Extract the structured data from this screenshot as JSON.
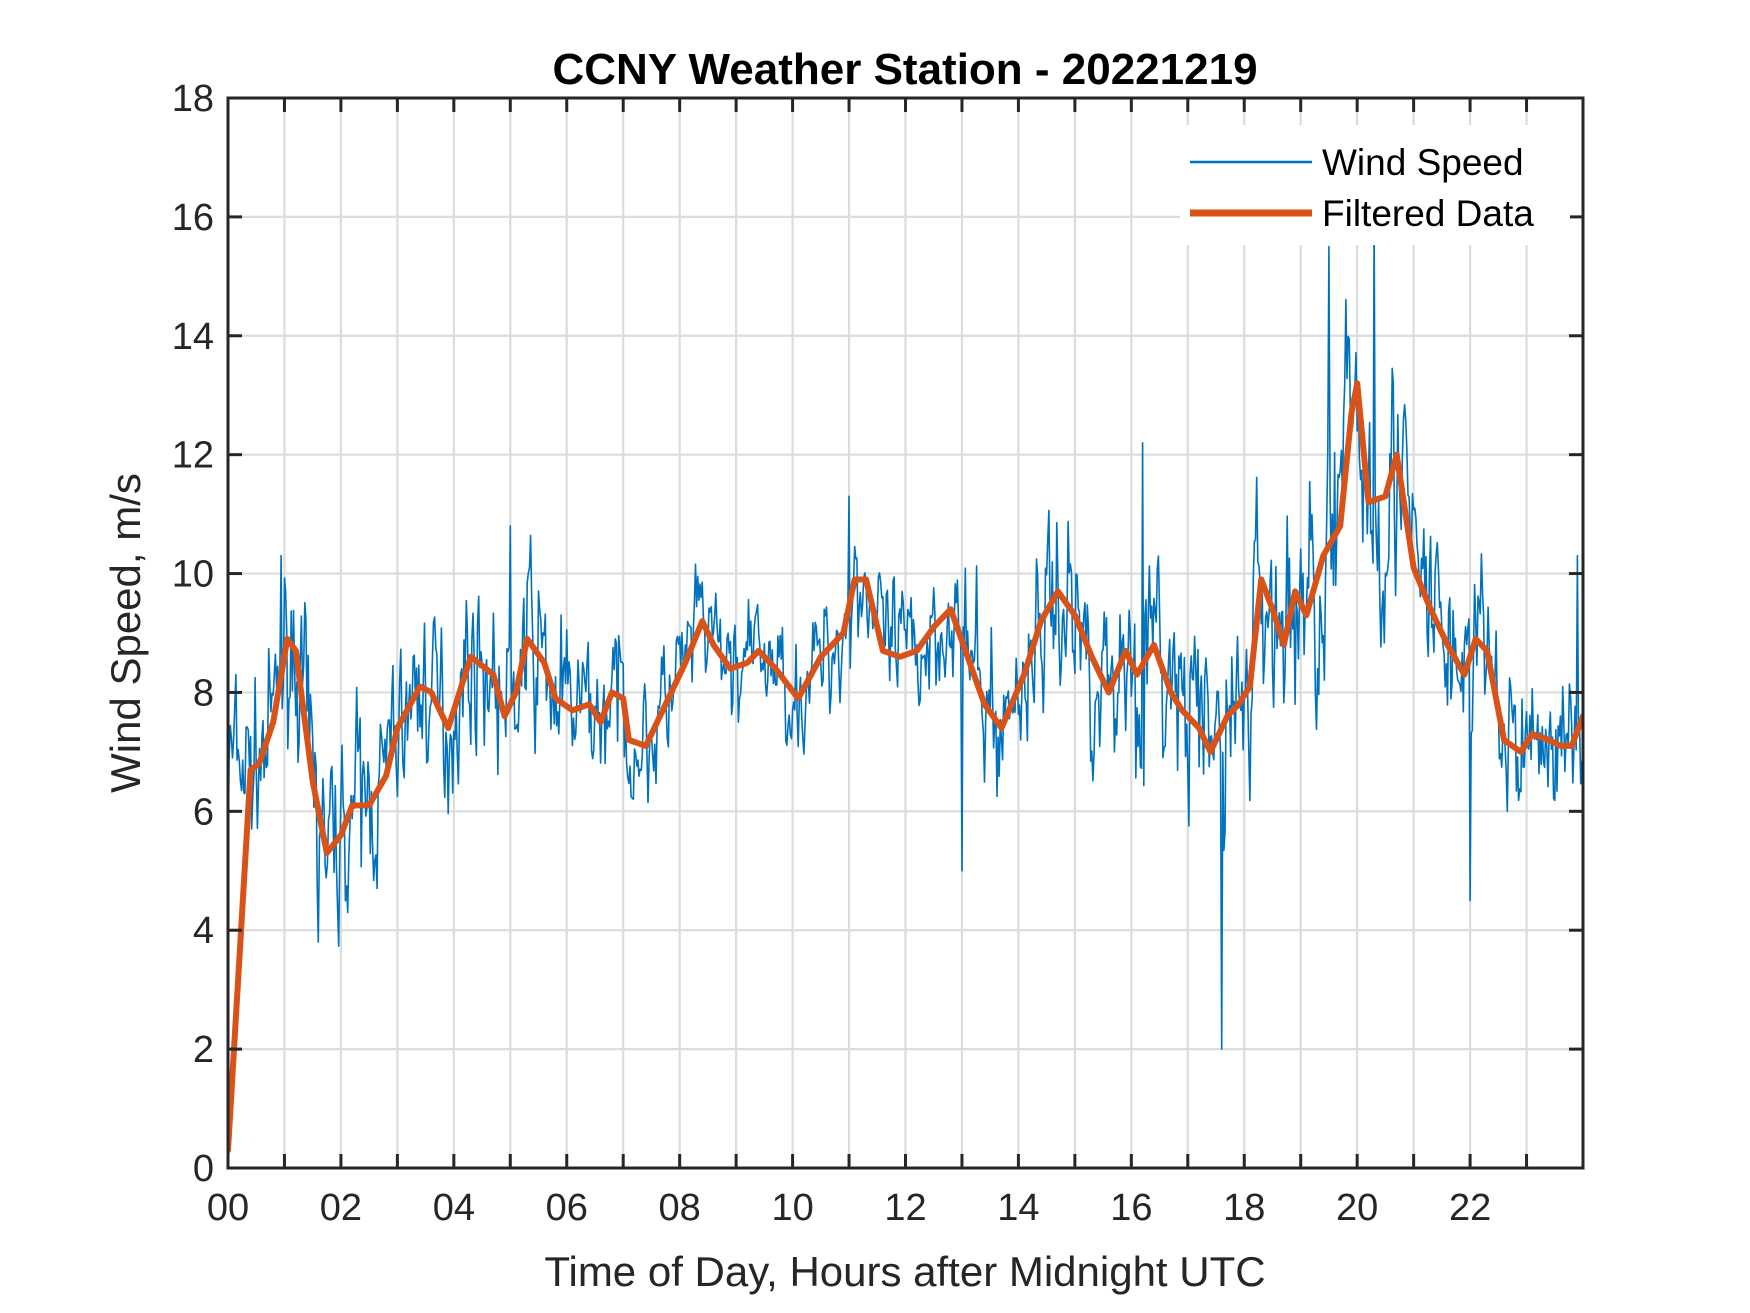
{
  "chart_data": {
    "type": "line",
    "title": "CCNY Weather Station - 20221219",
    "xlabel": "Time of Day, Hours after Midnight UTC",
    "ylabel": "Wind Speed, m/s",
    "xlim": [
      0,
      24
    ],
    "ylim": [
      0,
      18
    ],
    "grid": true,
    "legend_position": "top-right",
    "x_ticks": [
      0,
      2,
      4,
      6,
      8,
      10,
      12,
      14,
      16,
      18,
      20,
      22
    ],
    "x_tick_labels": [
      "00",
      "02",
      "04",
      "06",
      "08",
      "10",
      "12",
      "14",
      "16",
      "18",
      "20",
      "22"
    ],
    "x_minor_ticks_every_hours": 1,
    "y_ticks": [
      0,
      2,
      4,
      6,
      8,
      10,
      12,
      14,
      16,
      18
    ],
    "y_tick_labels": [
      "0",
      "2",
      "4",
      "6",
      "8",
      "10",
      "12",
      "14",
      "16",
      "18"
    ],
    "series": [
      {
        "name": "Wind Speed",
        "color": "#0072BD",
        "style": "thin",
        "x_step_hours": 0.02,
        "noise_seed": 7,
        "notable_points": [
          {
            "x": 0.0,
            "y": 5.2
          },
          {
            "x": 0.15,
            "y": 8.3
          },
          {
            "x": 0.95,
            "y": 10.3
          },
          {
            "x": 1.6,
            "y": 3.8
          },
          {
            "x": 5.0,
            "y": 10.8
          },
          {
            "x": 11.0,
            "y": 11.3
          },
          {
            "x": 13.0,
            "y": 5.0
          },
          {
            "x": 16.2,
            "y": 12.2
          },
          {
            "x": 17.6,
            "y": 2.0
          },
          {
            "x": 19.5,
            "y": 15.5
          },
          {
            "x": 20.3,
            "y": 16.0
          },
          {
            "x": 22.0,
            "y": 4.5
          },
          {
            "x": 23.9,
            "y": 10.3
          }
        ],
        "envelope_base": "Filtered Data"
      },
      {
        "name": "Filtered Data",
        "color": "#D95319",
        "style": "thick",
        "x": [
          0,
          0.4,
          0.55,
          0.8,
          1.05,
          1.2,
          1.5,
          1.75,
          2.0,
          2.2,
          2.5,
          2.8,
          3.0,
          3.4,
          3.6,
          3.9,
          4.1,
          4.3,
          4.7,
          4.9,
          5.1,
          5.3,
          5.6,
          5.8,
          6.1,
          6.4,
          6.6,
          6.8,
          7.0,
          7.1,
          7.4,
          7.8,
          8.1,
          8.4,
          8.6,
          8.9,
          9.2,
          9.4,
          9.7,
          10.1,
          10.5,
          10.9,
          11.1,
          11.3,
          11.6,
          11.9,
          12.2,
          12.5,
          12.8,
          13.1,
          13.4,
          13.7,
          14.1,
          14.4,
          14.7,
          15.0,
          15.3,
          15.6,
          15.9,
          16.1,
          16.4,
          16.7,
          16.9,
          17.2,
          17.4,
          17.7,
          17.9,
          18.1,
          18.3,
          18.5,
          18.7,
          18.9,
          19.1,
          19.4,
          19.7,
          19.9,
          20.0,
          20.2,
          20.5,
          20.7,
          21.0,
          21.3,
          21.6,
          21.9,
          22.1,
          22.3,
          22.6,
          22.9,
          23.1,
          23.4,
          23.6,
          23.8,
          24.0
        ],
        "y": [
          0.3,
          6.7,
          6.8,
          7.5,
          8.9,
          8.7,
          6.5,
          5.3,
          5.6,
          6.1,
          6.1,
          6.6,
          7.4,
          8.1,
          8.0,
          7.4,
          8.0,
          8.6,
          8.3,
          7.6,
          8.0,
          8.9,
          8.5,
          7.9,
          7.7,
          7.8,
          7.5,
          8.0,
          7.9,
          7.2,
          7.1,
          7.9,
          8.5,
          9.2,
          8.8,
          8.4,
          8.5,
          8.7,
          8.4,
          7.9,
          8.6,
          9.0,
          9.9,
          9.9,
          8.7,
          8.6,
          8.7,
          9.1,
          9.4,
          8.6,
          7.8,
          7.4,
          8.3,
          9.2,
          9.7,
          9.3,
          8.6,
          8.0,
          8.7,
          8.3,
          8.8,
          8.0,
          7.7,
          7.4,
          7.0,
          7.6,
          7.8,
          8.1,
          9.9,
          9.4,
          8.8,
          9.7,
          9.3,
          10.3,
          10.8,
          12.7,
          13.2,
          11.2,
          11.3,
          12.0,
          10.1,
          9.4,
          8.8,
          8.3,
          8.9,
          8.7,
          7.2,
          7.0,
          7.3,
          7.2,
          7.1,
          7.1,
          7.6
        ]
      }
    ],
    "noise_amplitude_by_hour": [
      1.4,
      1.6,
      1.6,
      1.4,
      1.4,
      1.6,
      1.2,
      1.2,
      1.1,
      1.0,
      1.1,
      1.3,
      1.2,
      1.4,
      1.6,
      1.8,
      1.9,
      2.0,
      2.1,
      2.4,
      2.4,
      1.8,
      1.4,
      1.3
    ]
  },
  "legend": {
    "items": [
      {
        "label": "Wind Speed",
        "color": "#0072BD"
      },
      {
        "label": "Filtered Data",
        "color": "#D95319"
      }
    ]
  }
}
